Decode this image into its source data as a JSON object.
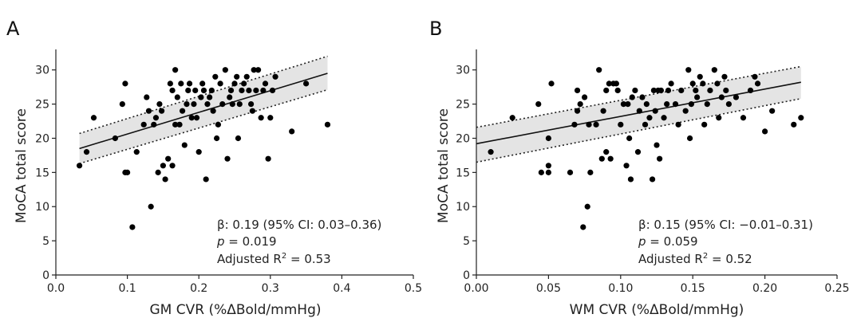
{
  "chart_data": [
    {
      "type": "scatter",
      "panel": "A",
      "xlabel": "GM CVR (%ΔBold/mmHg)",
      "ylabel": "MoCA total score",
      "xlim": [
        0.0,
        0.5
      ],
      "ylim": [
        0,
        33
      ],
      "xticks": [
        0.0,
        0.1,
        0.2,
        0.3,
        0.4,
        0.5
      ],
      "xtick_labels": [
        "0.0",
        "0.1",
        "0.2",
        "0.3",
        "0.4",
        "0.5"
      ],
      "yticks": [
        0,
        5,
        10,
        15,
        20,
        25,
        30
      ],
      "ytick_labels": [
        "0",
        "5",
        "10",
        "15",
        "20",
        "25",
        "30"
      ],
      "grid": false,
      "fit": {
        "x": [
          0.033,
          0.38
        ],
        "y": [
          18.5,
          29.5
        ]
      },
      "ci": {
        "x": [
          0.033,
          0.38
        ],
        "upper": [
          20.7,
          32.0
        ],
        "lower": [
          16.3,
          27.1
        ]
      },
      "stats": {
        "beta_label": "β: 0.19 (95% CI: 0.03–0.36)",
        "p_symbol": "p",
        "p_value": " = 0.019",
        "r2_prefix": "Adjusted R",
        "r2_sup": "2",
        "r2_value": " = 0.53"
      },
      "points": [
        [
          0.033,
          16
        ],
        [
          0.043,
          18
        ],
        [
          0.053,
          23
        ],
        [
          0.083,
          20
        ],
        [
          0.093,
          25
        ],
        [
          0.097,
          28
        ],
        [
          0.097,
          15
        ],
        [
          0.1,
          15
        ],
        [
          0.107,
          7
        ],
        [
          0.113,
          18
        ],
        [
          0.123,
          22
        ],
        [
          0.127,
          26
        ],
        [
          0.13,
          24
        ],
        [
          0.133,
          10
        ],
        [
          0.137,
          22
        ],
        [
          0.14,
          23
        ],
        [
          0.143,
          15
        ],
        [
          0.145,
          25
        ],
        [
          0.148,
          24
        ],
        [
          0.15,
          16
        ],
        [
          0.153,
          14
        ],
        [
          0.157,
          17
        ],
        [
          0.16,
          28
        ],
        [
          0.163,
          16
        ],
        [
          0.163,
          27
        ],
        [
          0.167,
          30
        ],
        [
          0.167,
          22
        ],
        [
          0.17,
          26
        ],
        [
          0.173,
          22
        ],
        [
          0.175,
          28
        ],
        [
          0.177,
          24
        ],
        [
          0.18,
          19
        ],
        [
          0.183,
          25
        ],
        [
          0.185,
          27
        ],
        [
          0.187,
          28
        ],
        [
          0.19,
          23
        ],
        [
          0.193,
          25
        ],
        [
          0.195,
          27
        ],
        [
          0.197,
          23
        ],
        [
          0.2,
          18
        ],
        [
          0.203,
          26
        ],
        [
          0.205,
          28
        ],
        [
          0.207,
          27
        ],
        [
          0.21,
          14
        ],
        [
          0.212,
          25
        ],
        [
          0.215,
          26
        ],
        [
          0.218,
          27
        ],
        [
          0.22,
          24
        ],
        [
          0.223,
          29
        ],
        [
          0.225,
          20
        ],
        [
          0.227,
          22
        ],
        [
          0.23,
          28
        ],
        [
          0.233,
          25
        ],
        [
          0.237,
          30
        ],
        [
          0.24,
          17
        ],
        [
          0.243,
          26
        ],
        [
          0.245,
          27
        ],
        [
          0.247,
          25
        ],
        [
          0.25,
          28
        ],
        [
          0.253,
          29
        ],
        [
          0.255,
          20
        ],
        [
          0.257,
          25
        ],
        [
          0.26,
          27
        ],
        [
          0.263,
          28
        ],
        [
          0.267,
          29
        ],
        [
          0.27,
          27
        ],
        [
          0.273,
          25
        ],
        [
          0.275,
          24
        ],
        [
          0.277,
          30
        ],
        [
          0.28,
          27
        ],
        [
          0.283,
          30
        ],
        [
          0.287,
          23
        ],
        [
          0.29,
          27
        ],
        [
          0.293,
          28
        ],
        [
          0.297,
          17
        ],
        [
          0.3,
          23
        ],
        [
          0.303,
          27
        ],
        [
          0.307,
          29
        ],
        [
          0.33,
          21
        ],
        [
          0.35,
          28
        ],
        [
          0.38,
          22
        ]
      ]
    },
    {
      "type": "scatter",
      "panel": "B",
      "xlabel": "WM CVR (%ΔBold/mmHg)",
      "ylabel": "MoCA total score",
      "xlim": [
        0.0,
        0.25
      ],
      "ylim": [
        0,
        33
      ],
      "xticks": [
        0.0,
        0.05,
        0.1,
        0.15,
        0.2,
        0.25
      ],
      "xtick_labels": [
        "0.00",
        "0.05",
        "0.10",
        "0.15",
        "0.20",
        "0.25"
      ],
      "yticks": [
        0,
        5,
        10,
        15,
        20,
        25,
        30
      ],
      "ytick_labels": [
        "0",
        "5",
        "10",
        "15",
        "20",
        "25",
        "30"
      ],
      "grid": false,
      "fit": {
        "x": [
          0.0,
          0.225
        ],
        "y": [
          19.2,
          28.2
        ]
      },
      "ci": {
        "x": [
          0.0,
          0.225
        ],
        "upper": [
          21.6,
          30.5
        ],
        "lower": [
          16.5,
          25.8
        ]
      },
      "stats": {
        "beta_label": "β: 0.15 (95% CI: −0.01–0.31)",
        "p_symbol": "p",
        "p_value": " = 0.059",
        "r2_prefix": "Adjusted R",
        "r2_sup": "2",
        "r2_value": " = 0.52"
      },
      "points": [
        [
          0.01,
          18
        ],
        [
          0.025,
          23
        ],
        [
          0.043,
          25
        ],
        [
          0.045,
          15
        ],
        [
          0.05,
          15
        ],
        [
          0.05,
          16
        ],
        [
          0.052,
          28
        ],
        [
          0.05,
          20
        ],
        [
          0.065,
          15
        ],
        [
          0.068,
          22
        ],
        [
          0.07,
          27
        ],
        [
          0.07,
          24
        ],
        [
          0.072,
          25
        ],
        [
          0.074,
          7
        ],
        [
          0.075,
          26
        ],
        [
          0.077,
          10
        ],
        [
          0.078,
          22
        ],
        [
          0.079,
          15
        ],
        [
          0.083,
          22
        ],
        [
          0.085,
          30
        ],
        [
          0.087,
          17
        ],
        [
          0.088,
          24
        ],
        [
          0.09,
          18
        ],
        [
          0.09,
          27
        ],
        [
          0.092,
          28
        ],
        [
          0.093,
          17
        ],
        [
          0.095,
          28
        ],
        [
          0.097,
          28
        ],
        [
          0.098,
          27
        ],
        [
          0.1,
          22
        ],
        [
          0.102,
          25
        ],
        [
          0.104,
          16
        ],
        [
          0.105,
          25
        ],
        [
          0.106,
          20
        ],
        [
          0.108,
          26
        ],
        [
          0.107,
          14
        ],
        [
          0.11,
          27
        ],
        [
          0.112,
          18
        ],
        [
          0.113,
          24
        ],
        [
          0.115,
          26
        ],
        [
          0.117,
          22
        ],
        [
          0.118,
          25
        ],
        [
          0.12,
          23
        ],
        [
          0.122,
          14
        ],
        [
          0.123,
          27
        ],
        [
          0.124,
          24
        ],
        [
          0.125,
          19
        ],
        [
          0.126,
          27
        ],
        [
          0.127,
          17
        ],
        [
          0.128,
          27
        ],
        [
          0.13,
          23
        ],
        [
          0.132,
          25
        ],
        [
          0.133,
          27
        ],
        [
          0.135,
          28
        ],
        [
          0.138,
          25
        ],
        [
          0.14,
          22
        ],
        [
          0.142,
          27
        ],
        [
          0.145,
          24
        ],
        [
          0.147,
          30
        ],
        [
          0.148,
          20
        ],
        [
          0.149,
          25
        ],
        [
          0.15,
          28
        ],
        [
          0.152,
          27
        ],
        [
          0.153,
          26
        ],
        [
          0.155,
          29
        ],
        [
          0.157,
          28
        ],
        [
          0.158,
          22
        ],
        [
          0.16,
          25
        ],
        [
          0.162,
          27
        ],
        [
          0.165,
          30
        ],
        [
          0.167,
          28
        ],
        [
          0.168,
          23
        ],
        [
          0.17,
          26
        ],
        [
          0.172,
          29
        ],
        [
          0.173,
          27
        ],
        [
          0.175,
          25
        ],
        [
          0.18,
          26
        ],
        [
          0.185,
          23
        ],
        [
          0.19,
          27
        ],
        [
          0.193,
          29
        ],
        [
          0.195,
          28
        ],
        [
          0.2,
          21
        ],
        [
          0.205,
          24
        ],
        [
          0.22,
          22
        ],
        [
          0.225,
          23
        ]
      ]
    }
  ]
}
